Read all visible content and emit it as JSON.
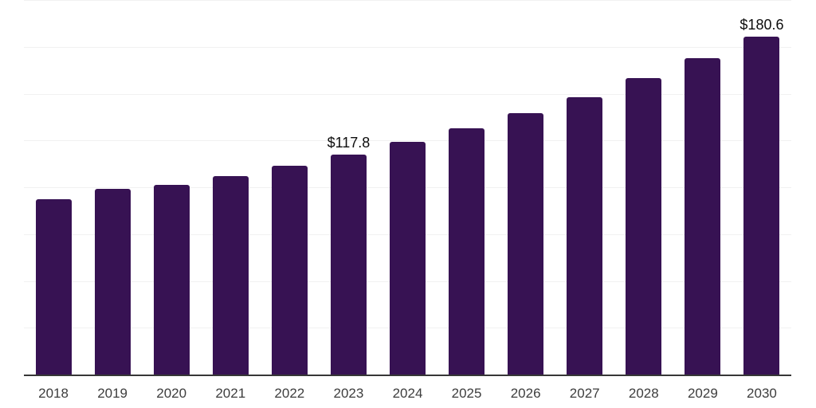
{
  "chart_data": {
    "type": "bar",
    "title": "",
    "xlabel": "",
    "ylabel": "",
    "categories": [
      "2018",
      "2019",
      "2020",
      "2021",
      "2022",
      "2023",
      "2024",
      "2025",
      "2026",
      "2027",
      "2028",
      "2029",
      "2030"
    ],
    "values": [
      93.8,
      99.4,
      101.3,
      106.2,
      111.8,
      117.8,
      124.4,
      131.6,
      139.6,
      148.2,
      158.4,
      169.1,
      180.6
    ],
    "data_labels": {
      "2023": "$117.8",
      "2030": "$180.6"
    },
    "ylim": [
      0,
      200
    ],
    "grid_step": 25,
    "grid": true,
    "legend": "none",
    "y_tick_labels_visible": false,
    "colors": {
      "bar": "#371253",
      "axis_line": "#373737",
      "gridline": "#f1f1f1",
      "tick_label": "#3d3d3d",
      "data_label": "#0d0d0d",
      "background": "#ffffff"
    }
  }
}
